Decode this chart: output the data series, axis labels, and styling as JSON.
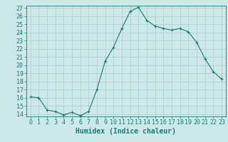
{
  "xlabel": "Humidex (Indice chaleur)",
  "x_values": [
    0,
    1,
    2,
    3,
    4,
    5,
    6,
    7,
    8,
    9,
    10,
    11,
    12,
    13,
    14,
    15,
    16,
    17,
    18,
    19,
    20,
    21,
    22,
    23
  ],
  "y_values": [
    16.1,
    16.0,
    14.5,
    14.3,
    13.9,
    14.2,
    13.8,
    14.3,
    17.0,
    20.5,
    22.2,
    24.5,
    26.6,
    27.1,
    25.5,
    24.8,
    24.5,
    24.3,
    24.5,
    24.1,
    22.8,
    20.8,
    19.2,
    18.3
  ],
  "ylim_min": 14,
  "ylim_max": 27,
  "yticks": [
    14,
    15,
    16,
    17,
    18,
    19,
    20,
    21,
    22,
    23,
    24,
    25,
    26,
    27
  ],
  "line_color": "#1a7a6e",
  "bg_color": "#cce8e8",
  "grid_color": "#aacece",
  "font_size_axis": 7,
  "font_size_ticks": 6
}
